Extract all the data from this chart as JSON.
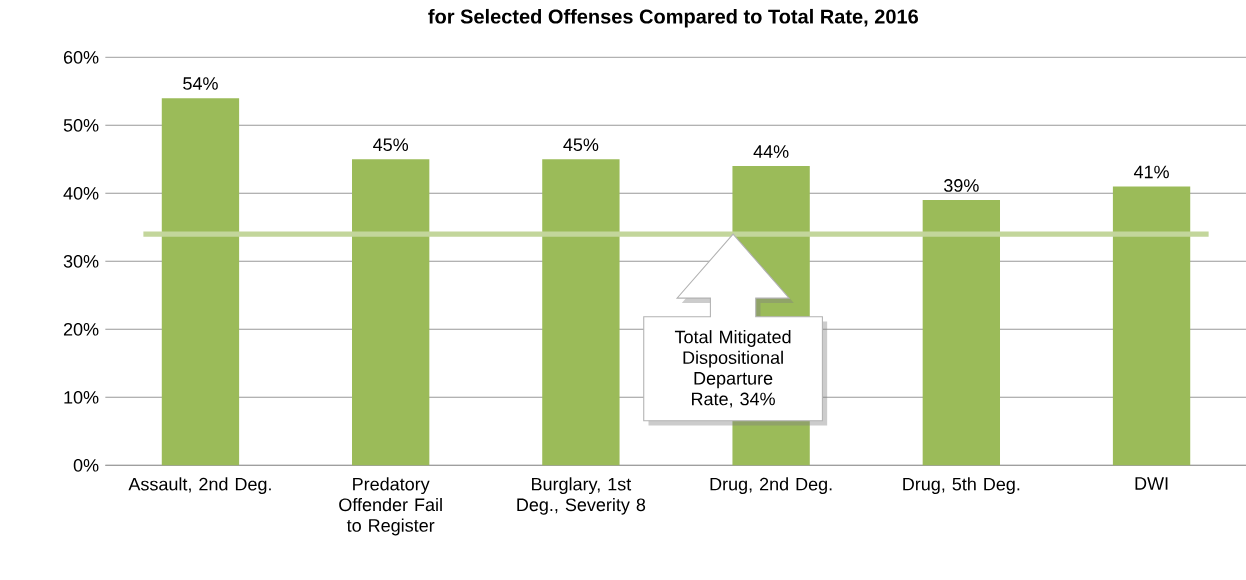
{
  "chart_data": {
    "type": "bar",
    "title": "for Selected Offenses Compared to Total Rate, 2016",
    "categories": [
      "Assault, 2nd Deg.",
      "Predatory Offender Fail to Register",
      "Burglary, 1st Deg., Severity 8",
      "Drug, 2nd Deg.",
      "Drug, 5th Deg.",
      "DWI"
    ],
    "values": [
      54,
      45,
      45,
      44,
      39,
      41
    ],
    "color": "#9bbb59",
    "value_labels": [
      "54%",
      "45%",
      "45%",
      "44%",
      "39%",
      "41%"
    ],
    "ylim": [
      0,
      60
    ],
    "yticks": [
      {
        "value": 0,
        "label": "0%"
      },
      {
        "value": 10,
        "label": "10%"
      },
      {
        "value": 20,
        "label": "20%"
      },
      {
        "value": 30,
        "label": "30%"
      },
      {
        "value": 40,
        "label": "40%"
      },
      {
        "value": 50,
        "label": "50%"
      },
      {
        "value": 60,
        "label": "60%"
      }
    ],
    "grid": "y",
    "ref_lines": [
      {
        "axis": "y",
        "value": 34,
        "color": "#c3d69b"
      }
    ],
    "annotations": [
      "Total Mitigated Dispositional Departure Rate, 34%"
    ]
  }
}
